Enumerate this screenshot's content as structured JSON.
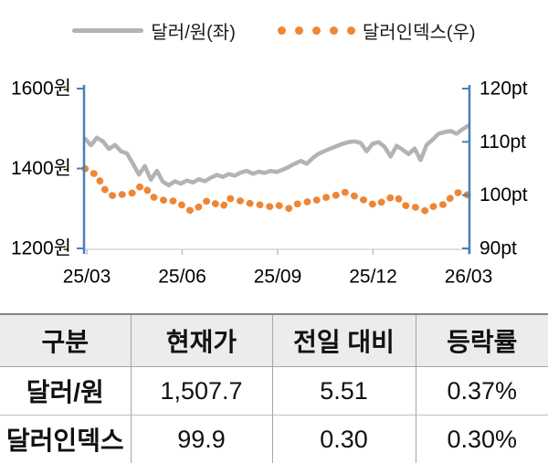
{
  "legend": {
    "series1_label": "달러/원(좌)",
    "series2_label": "달러인덱스(우)"
  },
  "chart_data": {
    "type": "line",
    "title": "",
    "legend_position": "top",
    "axis_color": "#4a7ebb",
    "baseline_color": "#d9d9d9",
    "x_tick_labels": [
      "25/03",
      "25/06",
      "25/09",
      "25/12",
      "26/03"
    ],
    "left_axis": {
      "unit": "원",
      "min": 1200,
      "max": 1600,
      "tick_labels": [
        "1600원",
        "1400원",
        "1200원"
      ]
    },
    "right_axis": {
      "unit": "pt",
      "min": 90,
      "max": 120,
      "tick_labels": [
        "120pt",
        "110pt",
        "100pt",
        "90pt"
      ]
    },
    "series": [
      {
        "name": "달러/원(좌)",
        "axis": "left",
        "style": "solid",
        "color": "#b3b3b3",
        "values": [
          1475,
          1458,
          1477,
          1468,
          1449,
          1459,
          1443,
          1438,
          1412,
          1385,
          1406,
          1372,
          1394,
          1367,
          1358,
          1368,
          1362,
          1370,
          1365,
          1373,
          1368,
          1377,
          1384,
          1379,
          1386,
          1382,
          1390,
          1394,
          1387,
          1392,
          1389,
          1394,
          1391,
          1397,
          1404,
          1412,
          1419,
          1412,
          1426,
          1437,
          1444,
          1450,
          1456,
          1462,
          1466,
          1468,
          1464,
          1443,
          1462,
          1466,
          1454,
          1430,
          1457,
          1447,
          1436,
          1450,
          1421,
          1459,
          1472,
          1487,
          1491,
          1494,
          1487,
          1498,
          1507.7
        ]
      },
      {
        "name": "달러인덱스(우)",
        "axis": "right",
        "style": "dotted",
        "color": "#ee8636",
        "values": [
          105.0,
          104.3,
          103.8,
          101.5,
          100.1,
          99.8,
          100.1,
          100.2,
          100.4,
          101.5,
          101.7,
          99.8,
          99.4,
          99.1,
          98.7,
          99.0,
          98.3,
          97.3,
          97.0,
          97.8,
          98.8,
          99.0,
          98.2,
          97.8,
          99.4,
          99.2,
          98.9,
          98.6,
          98.3,
          98.2,
          98.1,
          97.8,
          98.2,
          97.8,
          97.5,
          98.3,
          98.4,
          98.7,
          99.2,
          99.0,
          99.5,
          99.8,
          100.0,
          100.6,
          100.4,
          99.8,
          99.2,
          99.0,
          98.3,
          98.2,
          99.2,
          99.5,
          99.8,
          98.3,
          97.8,
          97.8,
          97.3,
          97.0,
          97.8,
          98.3,
          98.2,
          99.5,
          100.4,
          100.6,
          99.9
        ]
      }
    ]
  },
  "table": {
    "headers": [
      "구분",
      "현재가",
      "전일 대비",
      "등락률"
    ],
    "rows": [
      [
        "달러/원",
        "1,507.7",
        "5.51",
        "0.37%"
      ],
      [
        "달러인덱스",
        "99.9",
        "0.30",
        "0.30%"
      ]
    ]
  }
}
